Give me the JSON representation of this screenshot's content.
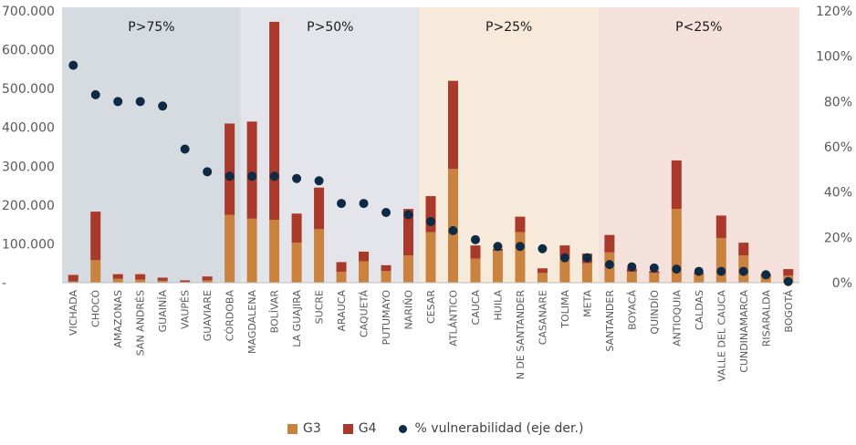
{
  "chart_data": {
    "type": "bar+scatter",
    "bands": [
      {
        "label": "P>75%",
        "from": "VICHADA",
        "to": "CÓRDOBA",
        "color": "#d5dbe0"
      },
      {
        "label": "P>50%",
        "from": "MAGDALENA",
        "to": "NARIÑO",
        "color": "#e4e5ea"
      },
      {
        "label": "P>25%",
        "from": "CESAR",
        "to": "META",
        "color": "#f7eadb"
      },
      {
        "label": "P<25%",
        "from": "SANTANDER",
        "to": "BOGOTÁ",
        "color": "#f4e1dc"
      }
    ],
    "categories": [
      "VICHADA",
      "CHOCÓ",
      "AMAZONAS",
      "SAN ANDRÉS",
      "GUAINÍA",
      "VAUPÉS",
      "GUAVIARE",
      "CÓRDOBA",
      "MAGDALENA",
      "BOLÍVAR",
      "LA GUAJIRA",
      "SUCRE",
      "ARAUCA",
      "CAQUETÁ",
      "PUTUMAYO",
      "NARIÑO",
      "CESAR",
      "ATLÁNTICO",
      "CAUCA",
      "HUILA",
      "N DE SANTANDER",
      "CASANARE",
      "TOLIMA",
      "META",
      "SANTANDER",
      "BOYACÁ",
      "QUINDÍO",
      "ANTIOQUIA",
      "CALDAS",
      "VALLE DEL CAUCA",
      "CUNDINAMARCA",
      "RISARALDA",
      "BOGOTÁ"
    ],
    "series": [
      {
        "name": "G3",
        "type": "bar",
        "color": "#c9833e",
        "values": [
          3000,
          58000,
          10000,
          8000,
          5000,
          2000,
          6000,
          175000,
          165000,
          162000,
          103000,
          138000,
          28000,
          55000,
          30000,
          70000,
          130000,
          293000,
          62000,
          82000,
          130000,
          25000,
          68000,
          50000,
          78000,
          28000,
          25000,
          190000,
          22000,
          115000,
          70000,
          15000,
          18000
        ]
      },
      {
        "name": "G4",
        "type": "bar",
        "color": "#a9392a",
        "values": [
          17000,
          125000,
          12000,
          14000,
          8000,
          4000,
          10000,
          235000,
          250000,
          510000,
          75000,
          107000,
          25000,
          25000,
          15000,
          120000,
          93000,
          227000,
          34000,
          5000,
          40000,
          12000,
          28000,
          25000,
          45000,
          8000,
          5000,
          125000,
          3000,
          58000,
          33000,
          7000,
          17000
        ]
      },
      {
        "name": "% vulnerabilidad (eje der.)",
        "type": "scatter",
        "axis": "right",
        "color": "#0f2a44",
        "values": [
          96,
          83,
          80,
          80,
          78,
          59,
          49,
          47,
          47,
          47,
          46,
          45,
          35,
          35,
          31,
          30,
          27,
          23,
          19,
          16,
          16,
          15,
          11,
          11,
          8,
          7,
          6.5,
          6,
          5,
          5,
          5,
          3.5,
          0.5
        ]
      }
    ],
    "y_left": {
      "min": 0,
      "max": 700000,
      "ticks": [
        "-",
        "100.000",
        "200.000",
        "300.000",
        "400.000",
        "500.000",
        "600.000",
        "700.000"
      ]
    },
    "y_right": {
      "min": 0,
      "max": 120,
      "ticks": [
        "0%",
        "20%",
        "40%",
        "60%",
        "80%",
        "100%",
        "120%"
      ]
    },
    "legend": {
      "position": "bottom"
    }
  }
}
